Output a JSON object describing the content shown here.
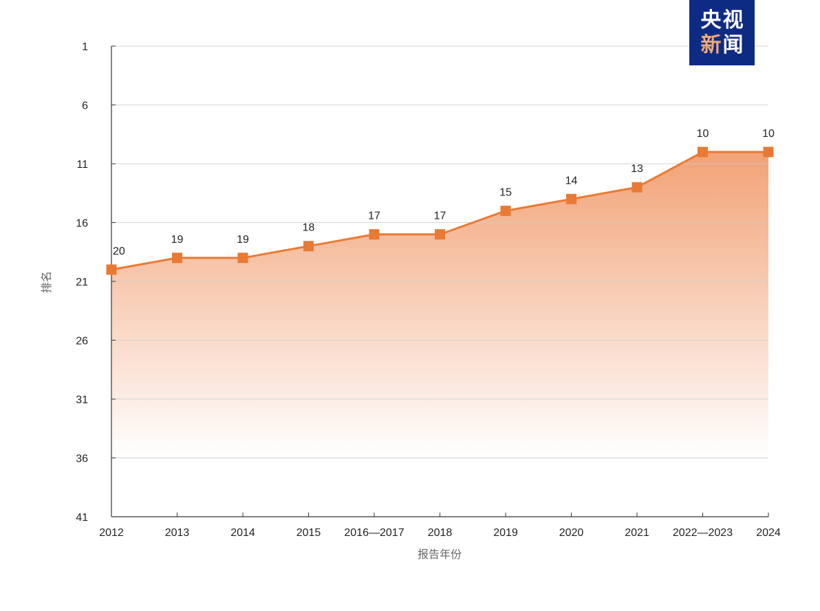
{
  "logo": {
    "line1": [
      "央",
      "视"
    ],
    "line2": [
      "新",
      "闻"
    ],
    "background": "#0e2b83",
    "accent_char_color": "#f0a878",
    "text_color": "#ffffff"
  },
  "chart_data": {
    "type": "area",
    "title": "",
    "xlabel": "报告年份",
    "ylabel": "排名",
    "categories": [
      "2012",
      "2013",
      "2014",
      "2015",
      "2016—2017",
      "2018",
      "2019",
      "2020",
      "2021",
      "2022—2023",
      "2024"
    ],
    "series": [
      {
        "name": "排名",
        "values": [
          20,
          19,
          19,
          18,
          17,
          17,
          15,
          14,
          13,
          10,
          10
        ]
      }
    ],
    "data_labels": [
      "20",
      "19",
      "19",
      "18",
      "17",
      "17",
      "15",
      "14",
      "13",
      "10",
      "10"
    ],
    "y_ticks": [
      1,
      6,
      11,
      16,
      21,
      26,
      31,
      36,
      41
    ],
    "ylim": [
      1,
      41
    ],
    "y_inverted": true,
    "grid": true,
    "legend": "none",
    "colors": {
      "line": "#e87a33",
      "marker": "#e87a33",
      "fill_top": "#f2a276",
      "fill_bottom": "#ffffff",
      "grid": "#cccccc",
      "axis": "#333333",
      "text": "#222222",
      "axis_title": "#666666"
    }
  }
}
